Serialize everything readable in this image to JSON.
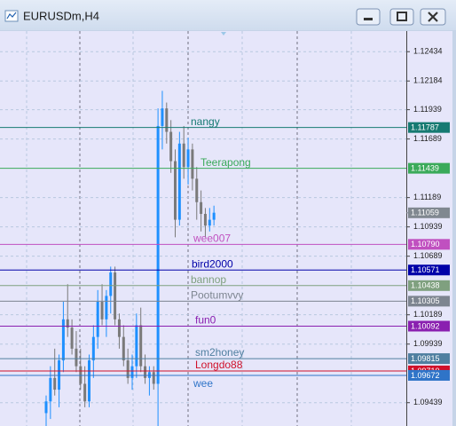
{
  "chart_data": {
    "type": "candlestick",
    "title": "EURUSDm,H4",
    "open": [
      1.0935,
      1.0945,
      1.0965,
      1.0955,
      1.098,
      1.1015,
      1.1008,
      1.099,
      1.0975,
      1.096,
      1.0945,
      1.098,
      1.1,
      1.103,
      1.1015,
      1.1035,
      1.1055,
      1.1015,
      1.1,
      1.098,
      1.0965,
      1.0975,
      1.101,
      1.0975,
      1.0965,
      1.097,
      1.096,
      1.118,
      1.1195,
      1.1175,
      1.115,
      1.11,
      1.1165,
      1.1145,
      1.116,
      1.1135,
      1.1115,
      1.1105,
      1.1095,
      1.11
    ],
    "high": [
      1.095,
      1.0975,
      1.099,
      1.0985,
      1.103,
      1.1045,
      1.1015,
      1.1005,
      1.099,
      1.0975,
      1.0985,
      1.101,
      1.104,
      1.1045,
      1.104,
      1.106,
      1.106,
      1.102,
      1.101,
      1.099,
      1.0985,
      1.102,
      1.1025,
      1.0985,
      1.0975,
      1.0975,
      1.1195,
      1.121,
      1.12,
      1.1185,
      1.116,
      1.1175,
      1.118,
      1.117,
      1.1165,
      1.1145,
      1.1125,
      1.111,
      1.111,
      1.1112
    ],
    "low": [
      1.0924,
      1.093,
      1.095,
      1.094,
      1.097,
      1.1,
      1.0985,
      1.097,
      1.0955,
      1.094,
      1.094,
      1.0965,
      1.099,
      1.101,
      1.1,
      1.102,
      1.101,
      1.099,
      1.0975,
      1.096,
      1.0955,
      1.0965,
      1.097,
      1.096,
      1.095,
      1.0955,
      1.0924,
      1.116,
      1.1165,
      1.114,
      1.1085,
      1.1095,
      1.1135,
      1.113,
      1.1125,
      1.11,
      1.109,
      1.1085,
      1.109,
      1.1095
    ],
    "close": [
      1.0945,
      1.0965,
      1.0955,
      1.098,
      1.1015,
      1.1008,
      1.099,
      1.0975,
      1.096,
      1.0945,
      1.098,
      1.1,
      1.103,
      1.1015,
      1.1035,
      1.1055,
      1.1015,
      1.1,
      1.098,
      1.0965,
      1.0975,
      1.101,
      1.0975,
      1.0965,
      1.097,
      1.096,
      1.118,
      1.1195,
      1.1175,
      1.115,
      1.11,
      1.1165,
      1.1145,
      1.116,
      1.1135,
      1.1115,
      1.1105,
      1.1095,
      1.11,
      1.1106
    ],
    "up_color": "#1e90ff",
    "down_color": "#7a7a7a",
    "ylim": [
      1.0924,
      1.1261
    ],
    "yticks": [
      1.12434,
      1.12184,
      1.11939,
      1.11689,
      1.11189,
      1.10939,
      1.10689,
      1.10189,
      1.09939,
      1.09439
    ],
    "grid": true,
    "current_price": 1.11059,
    "current_color": "#808890",
    "levels": [
      {
        "name": "nangy",
        "value": 1.11787,
        "color": "#167a72"
      },
      {
        "name": "Teerapong",
        "value": 1.11439,
        "color": "#3aaa5a"
      },
      {
        "name": "wee007",
        "value": 1.1079,
        "label": "1.10790",
        "color": "#c050c0"
      },
      {
        "name": "bird2000",
        "value": 1.10571,
        "color": "#0000a8"
      },
      {
        "name": "bannop",
        "value": 1.10438,
        "color": "#7fa07f"
      },
      {
        "name": "Pootumvvy",
        "value": 1.10305,
        "color": "#7d8590"
      },
      {
        "name": "fun0",
        "value": 1.10092,
        "color": "#8a20b0"
      },
      {
        "name": "sm2honey",
        "value": 1.09815,
        "color": "#4f7fa0"
      },
      {
        "name": "Longdo88",
        "value": 1.0971,
        "label": "1.09710",
        "color": "#d0102a"
      },
      {
        "name": "wee",
        "value": 1.09672,
        "color": "#2f74c8"
      }
    ]
  }
}
